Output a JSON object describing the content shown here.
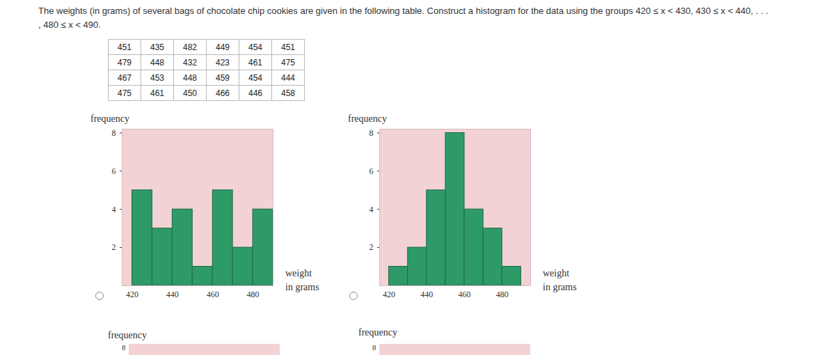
{
  "question": [
    "The weights (in grams) of several bags of chocolate chip cookies are given in the following table. Construct a histogram for the data using the groups 420 ≤ x < 430, 430 ≤ x < 440, . . .",
    ", 480 ≤ x < 490."
  ],
  "table": {
    "rows": [
      [
        451,
        435,
        482,
        449,
        454,
        451
      ],
      [
        479,
        448,
        432,
        423,
        461,
        475
      ],
      [
        467,
        453,
        448,
        459,
        454,
        444
      ],
      [
        475,
        461,
        450,
        466,
        446,
        458
      ]
    ]
  },
  "chart_data": [
    {
      "type": "histogram",
      "ylabel": "frequency",
      "xlabel_lines": [
        "weight",
        "in grams"
      ],
      "bins": [
        420,
        430,
        440,
        450,
        460,
        470,
        480,
        490
      ],
      "values": [
        5,
        3,
        4,
        1,
        5,
        2,
        4
      ],
      "color": "#2e9a68",
      "xlim": [
        415,
        490
      ],
      "ylim": [
        0,
        8.2
      ],
      "xticks": [
        420,
        440,
        460,
        480
      ],
      "yticks": [
        2,
        4,
        6,
        8
      ]
    },
    {
      "type": "histogram",
      "ylabel": "frequency",
      "xlabel_lines": [
        "weight",
        "in grams"
      ],
      "bins": [
        420,
        430,
        440,
        450,
        460,
        470,
        480,
        490
      ],
      "values": [
        1,
        2,
        5,
        8,
        4,
        3,
        1
      ],
      "color": "#2e9a68",
      "xlim": [
        415,
        495
      ],
      "ylim": [
        0,
        8.2
      ],
      "xticks": [
        420,
        440,
        460,
        480
      ],
      "yticks": [
        2,
        4,
        6,
        8
      ]
    }
  ],
  "more_options": [
    {
      "ylabel": "frequency",
      "visible_tick": 8
    },
    {
      "ylabel": "frequency",
      "visible_tick": 8
    }
  ]
}
